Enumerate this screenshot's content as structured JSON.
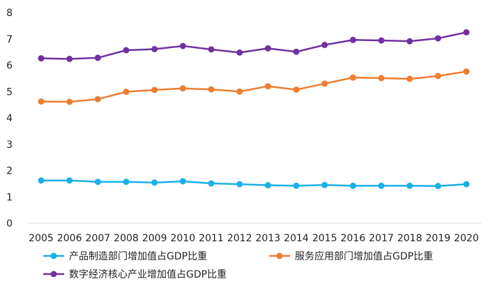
{
  "chart_data": {
    "type": "line",
    "title": "",
    "xlabel": "",
    "ylabel": "",
    "ylim": [
      0,
      8
    ],
    "y_ticks": [
      "0",
      "1",
      "2",
      "3",
      "4",
      "5",
      "6",
      "7",
      "8"
    ],
    "grid": false,
    "legend_position": "bottom",
    "categories": [
      "2005",
      "2006",
      "2007",
      "2008",
      "2009",
      "2010",
      "2011",
      "2012",
      "2013",
      "2014",
      "2015",
      "2016",
      "2017",
      "2018",
      "2019",
      "2020"
    ],
    "series": [
      {
        "name": "产品制造部门增加值占GDP比重",
        "color": "#1ab0e8",
        "values": [
          1.62,
          1.62,
          1.57,
          1.57,
          1.54,
          1.59,
          1.51,
          1.48,
          1.44,
          1.42,
          1.45,
          1.42,
          1.42,
          1.42,
          1.41,
          1.48
        ]
      },
      {
        "name": "服务应用部门增加值占GDP比重",
        "color": "#ed7d31",
        "values": [
          4.62,
          4.61,
          4.71,
          4.99,
          5.06,
          5.12,
          5.08,
          5.0,
          5.2,
          5.07,
          5.3,
          5.53,
          5.51,
          5.48,
          5.59,
          5.76
        ]
      },
      {
        "name": "数字经济核心产业增加值占GDP比重",
        "color": "#7030a0",
        "values": [
          6.26,
          6.24,
          6.28,
          6.57,
          6.61,
          6.73,
          6.6,
          6.48,
          6.64,
          6.51,
          6.77,
          6.96,
          6.94,
          6.91,
          7.02,
          7.25
        ]
      }
    ]
  }
}
